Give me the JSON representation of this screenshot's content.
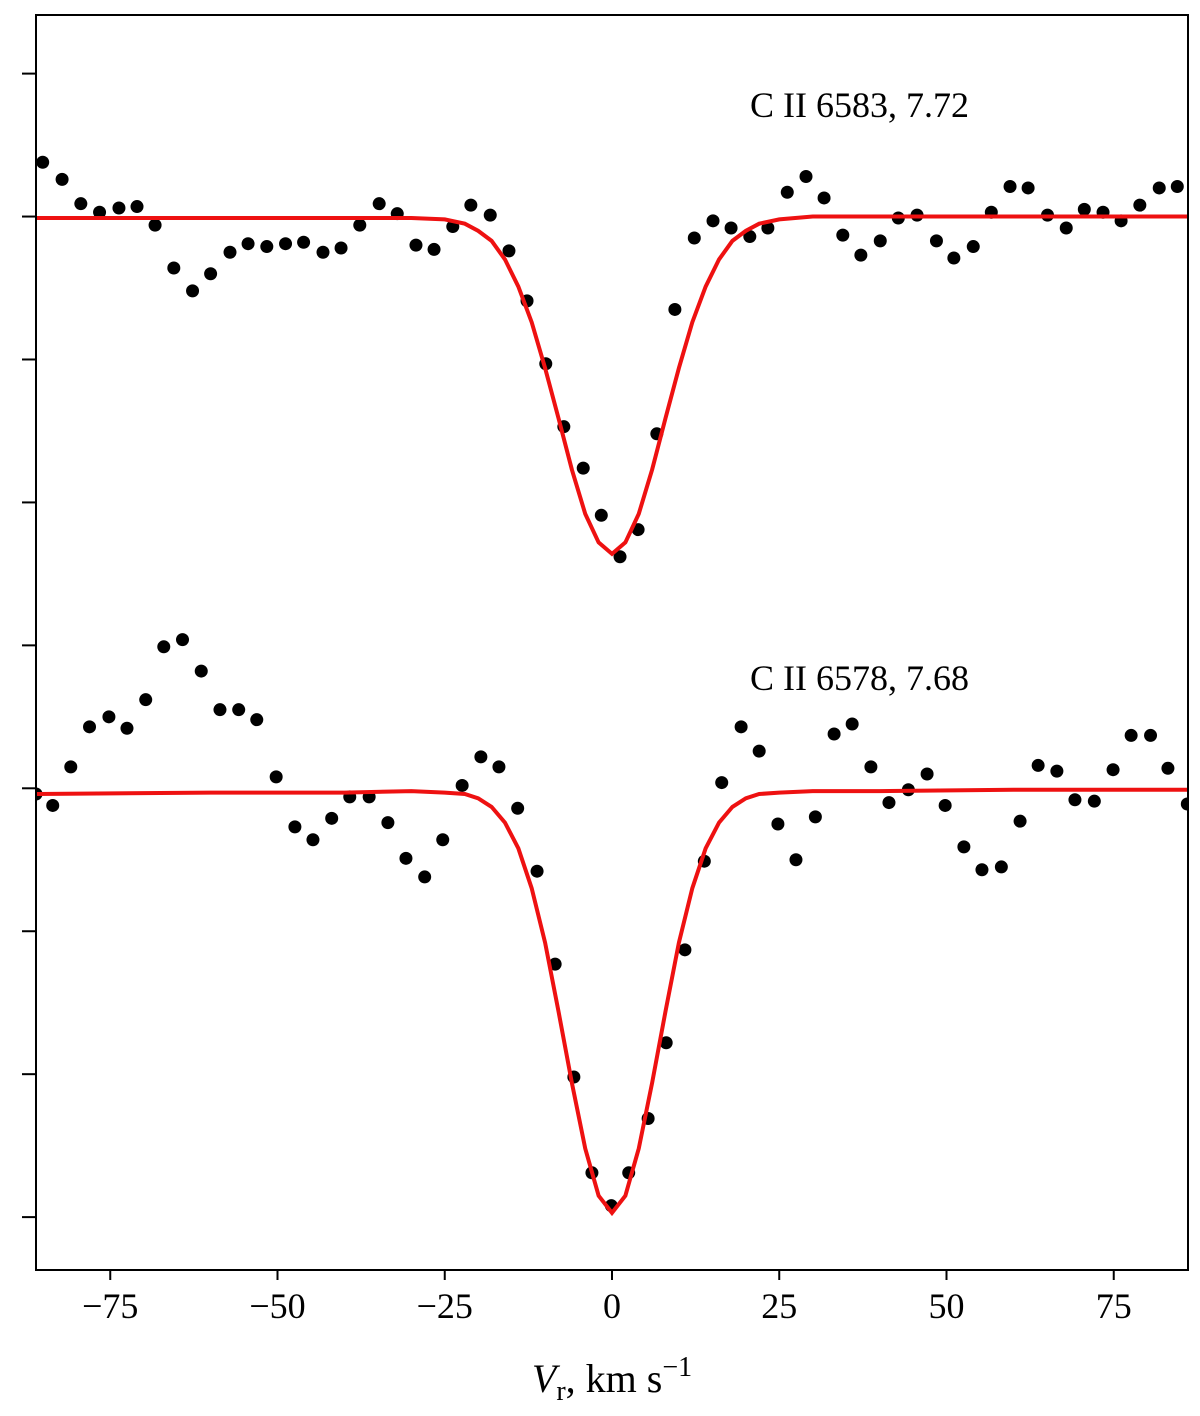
{
  "chart_data": {
    "type": "scatter",
    "annotations": [
      "C II 6583, 7.72",
      "C II 6578, 7.68"
    ],
    "xlabel": {
      "symbol": "V",
      "subscript": "r",
      "text": ", km s",
      "exponent": "−1"
    },
    "xlim": [
      -86.1,
      86.1
    ],
    "xticks": [
      {
        "value": -75,
        "label": "−75"
      },
      {
        "value": -50,
        "label": "−50"
      },
      {
        "value": -25,
        "label": "−25"
      },
      0,
      25,
      50,
      75
    ],
    "ylim": [
      0.663,
      1.541
    ],
    "yticks": [
      0.7,
      0.8,
      0.9,
      1.0,
      1.1,
      1.2,
      1.3,
      1.4,
      1.5
    ],
    "series": [
      {
        "kind": "scatter",
        "color": "#000000",
        "x": [
          -85.1,
          -82.2,
          -79.4,
          -76.6,
          -73.7,
          -71.0,
          -68.3,
          -65.5,
          -62.7,
          -60.0,
          -57.1,
          -54.4,
          -51.6,
          -48.8,
          -46.1,
          -43.2,
          -40.5,
          -37.7,
          -34.8,
          -32.1,
          -29.3,
          -26.6,
          -23.8,
          -21.1,
          -18.2,
          -15.4,
          -12.7,
          -9.9,
          -7.2,
          -4.3,
          -1.6,
          1.2,
          3.9,
          6.7,
          9.4,
          12.3,
          15.1,
          17.8,
          20.6,
          23.3,
          26.2,
          29.0,
          31.7,
          34.5,
          37.2,
          40.1,
          42.8,
          45.6,
          48.5,
          51.1,
          54.0,
          56.7,
          59.5,
          62.2,
          65.1,
          67.9,
          70.6,
          73.4,
          76.1,
          78.9,
          81.8,
          84.5
        ],
        "values": [
          1.438,
          1.426,
          1.409,
          1.403,
          1.406,
          1.407,
          1.394,
          1.364,
          1.348,
          1.36,
          1.375,
          1.381,
          1.379,
          1.381,
          1.382,
          1.375,
          1.378,
          1.394,
          1.409,
          1.402,
          1.38,
          1.377,
          1.393,
          1.408,
          1.401,
          1.376,
          1.341,
          1.297,
          1.253,
          1.224,
          1.191,
          1.162,
          1.181,
          1.248,
          1.335,
          1.385,
          1.397,
          1.392,
          1.386,
          1.392,
          1.417,
          1.428,
          1.413,
          1.387,
          1.373,
          1.383,
          1.399,
          1.401,
          1.383,
          1.371,
          1.379,
          1.403,
          1.421,
          1.42,
          1.401,
          1.392,
          1.405,
          1.403,
          1.397,
          1.408,
          1.42,
          1.421
        ]
      },
      {
        "kind": "line",
        "color": "#ee1111",
        "x": [
          -86,
          -60,
          -40,
          -30,
          -25,
          -22,
          -20,
          -18,
          -16,
          -14,
          -12,
          -10,
          -8,
          -6,
          -4,
          -2,
          0,
          2,
          4,
          6,
          8,
          10,
          12,
          14,
          16,
          18,
          20,
          22,
          25,
          30,
          40,
          60,
          86
        ],
        "values": [
          1.399,
          1.399,
          1.399,
          1.399,
          1.398,
          1.395,
          1.39,
          1.383,
          1.37,
          1.351,
          1.326,
          1.294,
          1.259,
          1.223,
          1.192,
          1.172,
          1.164,
          1.172,
          1.192,
          1.223,
          1.259,
          1.294,
          1.326,
          1.351,
          1.37,
          1.383,
          1.39,
          1.395,
          1.398,
          1.4,
          1.4,
          1.4,
          1.4
        ]
      },
      {
        "kind": "scatter",
        "color": "#000000",
        "x": [
          -86.1,
          -83.6,
          -80.9,
          -78.1,
          -75.2,
          -72.5,
          -69.7,
          -67.0,
          -64.2,
          -61.4,
          -58.6,
          -55.8,
          -53.1,
          -50.2,
          -47.4,
          -44.7,
          -41.9,
          -39.2,
          -36.3,
          -33.5,
          -30.8,
          -28.0,
          -25.3,
          -22.4,
          -19.6,
          -16.9,
          -14.1,
          -11.2,
          -8.5,
          -5.7,
          -3.0,
          -0.1,
          2.5,
          5.4,
          8.1,
          10.9,
          13.8,
          16.4,
          19.3,
          22.0,
          24.8,
          27.5,
          30.4,
          33.2,
          35.9,
          38.7,
          41.4,
          44.3,
          47.1,
          49.8,
          52.6,
          55.3,
          58.2,
          61.0,
          63.7,
          66.5,
          69.2,
          72.1,
          74.9,
          77.6,
          80.5,
          83.1,
          86.0
        ],
        "values": [
          0.996,
          0.988,
          1.015,
          1.043,
          1.05,
          1.042,
          1.062,
          1.099,
          1.104,
          1.082,
          1.055,
          1.055,
          1.048,
          1.008,
          0.973,
          0.964,
          0.979,
          0.994,
          0.994,
          0.976,
          0.951,
          0.938,
          0.964,
          1.002,
          1.022,
          1.015,
          0.986,
          0.942,
          0.877,
          0.798,
          0.731,
          0.708,
          0.731,
          0.769,
          0.822,
          0.887,
          0.949,
          1.004,
          1.043,
          1.026,
          0.975,
          0.95,
          0.98,
          1.038,
          1.045,
          1.015,
          0.99,
          0.999,
          1.01,
          0.988,
          0.959,
          0.943,
          0.945,
          0.977,
          1.016,
          1.012,
          0.992,
          0.991,
          1.013,
          1.037,
          1.037,
          1.014,
          0.989
        ]
      },
      {
        "kind": "line",
        "color": "#ee1111",
        "x": [
          -86,
          -60,
          -40,
          -30,
          -25,
          -22,
          -20,
          -18,
          -16,
          -14,
          -12,
          -10,
          -8,
          -6,
          -4,
          -2,
          0,
          2,
          4,
          6,
          8,
          10,
          12,
          14,
          16,
          18,
          20,
          22,
          25,
          30,
          40,
          60,
          86
        ],
        "values": [
          0.996,
          0.997,
          0.997,
          0.998,
          0.997,
          0.996,
          0.993,
          0.987,
          0.976,
          0.958,
          0.93,
          0.892,
          0.844,
          0.794,
          0.748,
          0.715,
          0.703,
          0.715,
          0.748,
          0.794,
          0.844,
          0.892,
          0.93,
          0.958,
          0.976,
          0.987,
          0.993,
          0.996,
          0.997,
          0.998,
          0.998,
          0.999,
          0.999
        ]
      }
    ]
  }
}
